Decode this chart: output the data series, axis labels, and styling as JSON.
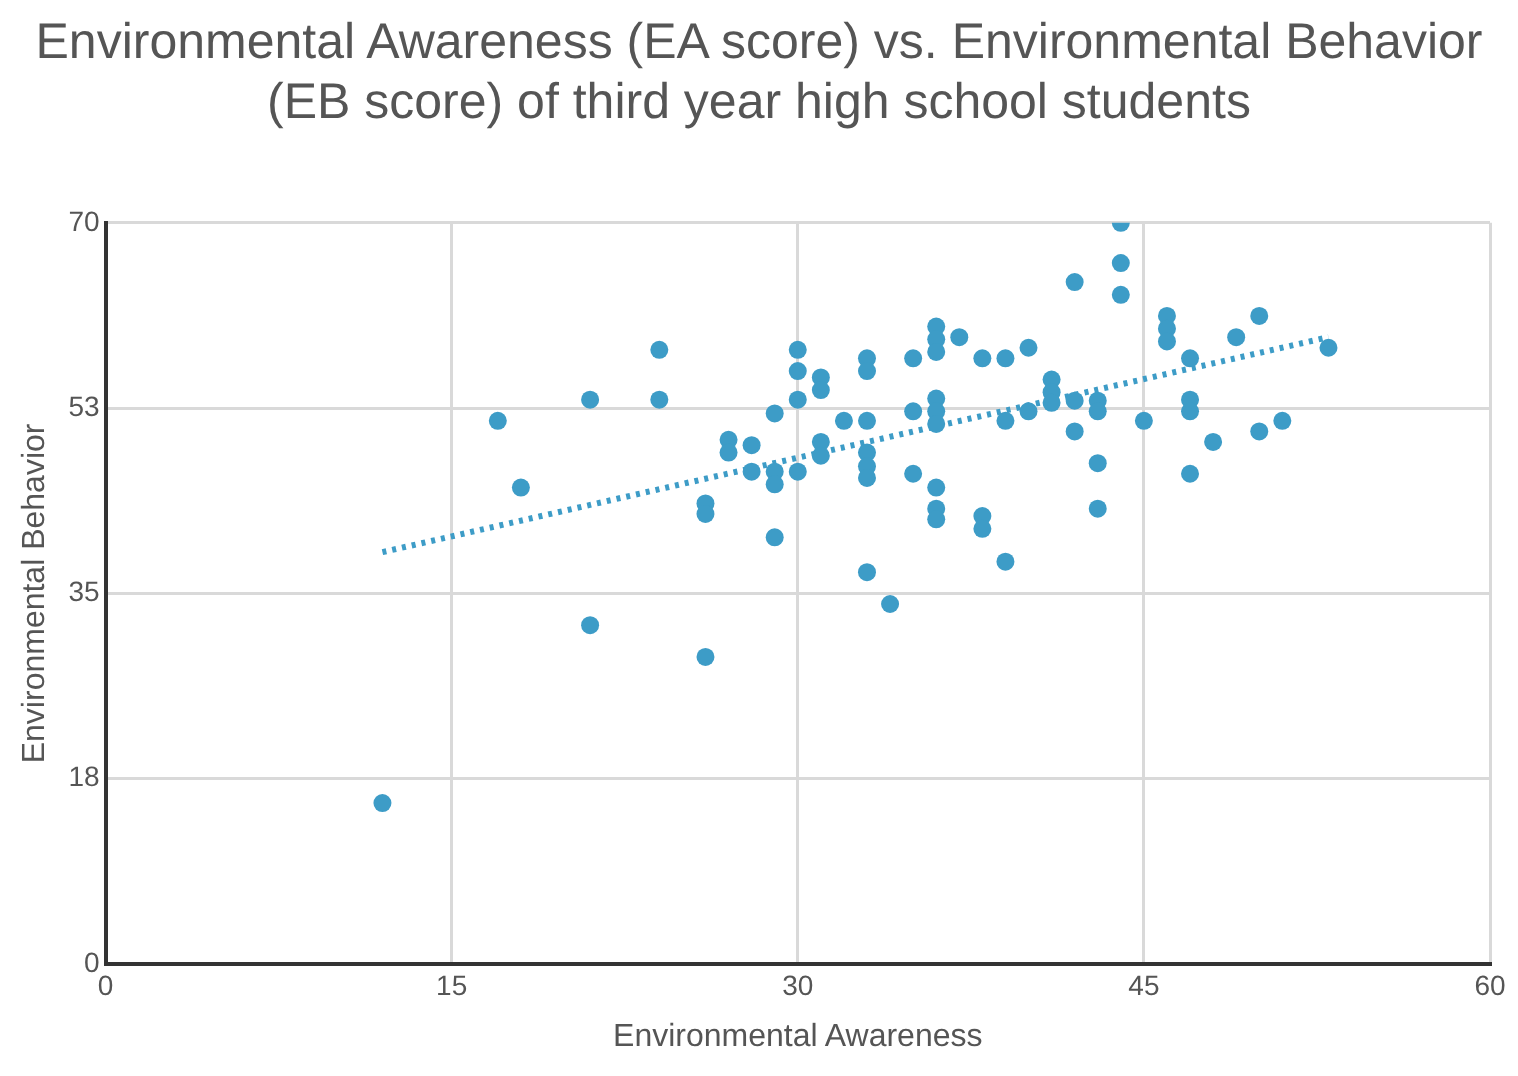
{
  "chart_data": {
    "type": "scatter",
    "title": "Environmental Awareness (EA score) vs. Environmental Behavior (EB score) of third year high school students",
    "xlabel": "Environmental Awareness",
    "ylabel": "Environmental Behavior",
    "xlim": [
      0,
      60
    ],
    "xticks": [
      0,
      15,
      30,
      45,
      60
    ],
    "ylim": [
      0,
      70
    ],
    "yticks": [
      0,
      {
        "value": 17.5,
        "label": "18"
      },
      35,
      {
        "value": 52.5,
        "label": "53"
      },
      70
    ],
    "grid": true,
    "legend": false,
    "marker": "circle",
    "series": [
      {
        "color": "#3d9cc7",
        "x": [
          12,
          17,
          18,
          21,
          21,
          24,
          24,
          26,
          26,
          26,
          27,
          27,
          28,
          28,
          29,
          29,
          29,
          29,
          30,
          30,
          30,
          30,
          31,
          31,
          31,
          31,
          32,
          33,
          33,
          33,
          33,
          33,
          33,
          33,
          34,
          35,
          35,
          35,
          36,
          36,
          36,
          36,
          36,
          36,
          36,
          36,
          36,
          37,
          38,
          38,
          38,
          39,
          39,
          39,
          40,
          40,
          41,
          41,
          41,
          42,
          42,
          43,
          43,
          43,
          43,
          44,
          44,
          44,
          42,
          45,
          46,
          46,
          46,
          47,
          47,
          47,
          47,
          48,
          49,
          50,
          50,
          51,
          53
        ],
        "values": [
          15.2,
          51.3,
          45,
          53.3,
          32,
          58,
          53.3,
          43.5,
          42.5,
          29,
          49.5,
          48.3,
          49,
          46.5,
          52,
          46.5,
          45.3,
          40.3,
          58,
          56,
          53.3,
          46.5,
          55.4,
          54.2,
          49.3,
          48,
          51.3,
          57.2,
          56,
          51.3,
          48.3,
          47,
          45.9,
          37,
          34,
          57.2,
          52.2,
          46.3,
          60.2,
          59,
          57.8,
          53.4,
          52.2,
          51,
          45,
          43,
          42,
          59.2,
          57.2,
          42.3,
          41.1,
          57.2,
          51.3,
          38,
          58.2,
          52.2,
          55.2,
          54,
          53,
          53.2,
          50.3,
          53.2,
          52.2,
          47.3,
          43,
          70,
          66.2,
          63.2,
          64.4,
          51.3,
          61.2,
          60,
          58.8,
          57.2,
          53.3,
          52.2,
          46.3,
          49.3,
          59.2,
          61.2,
          50.3,
          51.3,
          58.2
        ]
      },
      {
        "type": "line",
        "color": "#3d9cc7",
        "line_style": "dotted",
        "marker": "none",
        "x": [
          12,
          53
        ],
        "values": [
          38.9,
          59.2
        ]
      }
    ]
  }
}
